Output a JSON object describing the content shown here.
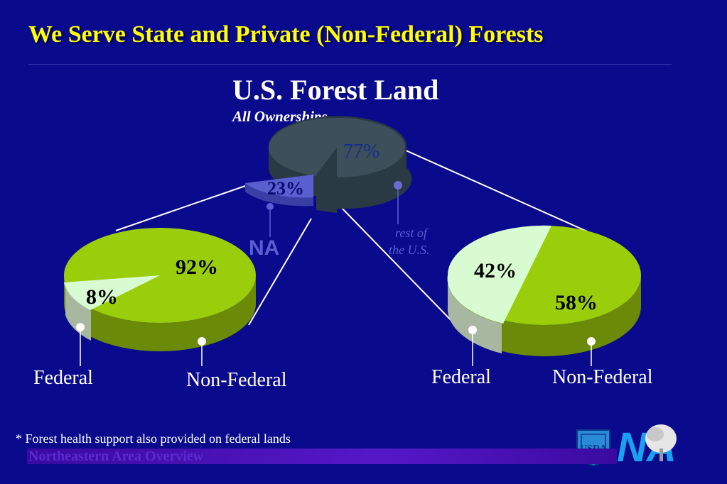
{
  "slide": {
    "title": "We Serve State and Private (Non-Federal) Forests",
    "footnote": "* Forest health support also provided on federal lands",
    "footer_text": "Northeastern Area Overview",
    "logo_text": "NA"
  },
  "colors": {
    "background": "#0a0a8c",
    "title": "#ffff00",
    "green": "#9acd0a",
    "light_green": "#d8fbd2",
    "slate": "#3c4f5a",
    "na_slice": "#5a5fd0"
  },
  "chart_data": [
    {
      "type": "pie",
      "title": "U.S. Forest Land",
      "subtitle": "All Ownerships",
      "slices": [
        {
          "label": "NA",
          "value": 23,
          "value_label": "23%"
        },
        {
          "label": "rest of the U.S.",
          "value": 77,
          "value_label": "77%"
        }
      ]
    },
    {
      "type": "pie",
      "slices": [
        {
          "label": "Federal",
          "value": 8,
          "value_label": "8%"
        },
        {
          "label": "Non-Federal",
          "value": 92,
          "value_label": "92%"
        }
      ]
    },
    {
      "type": "pie",
      "slices": [
        {
          "label": "Federal",
          "value": 42,
          "value_label": "42%"
        },
        {
          "label": "Non-Federal",
          "value": 58,
          "value_label": "58%"
        }
      ]
    }
  ],
  "labels": {
    "na_callout": "NA",
    "rest_line1": "rest of",
    "rest_line2": "the U.S."
  }
}
